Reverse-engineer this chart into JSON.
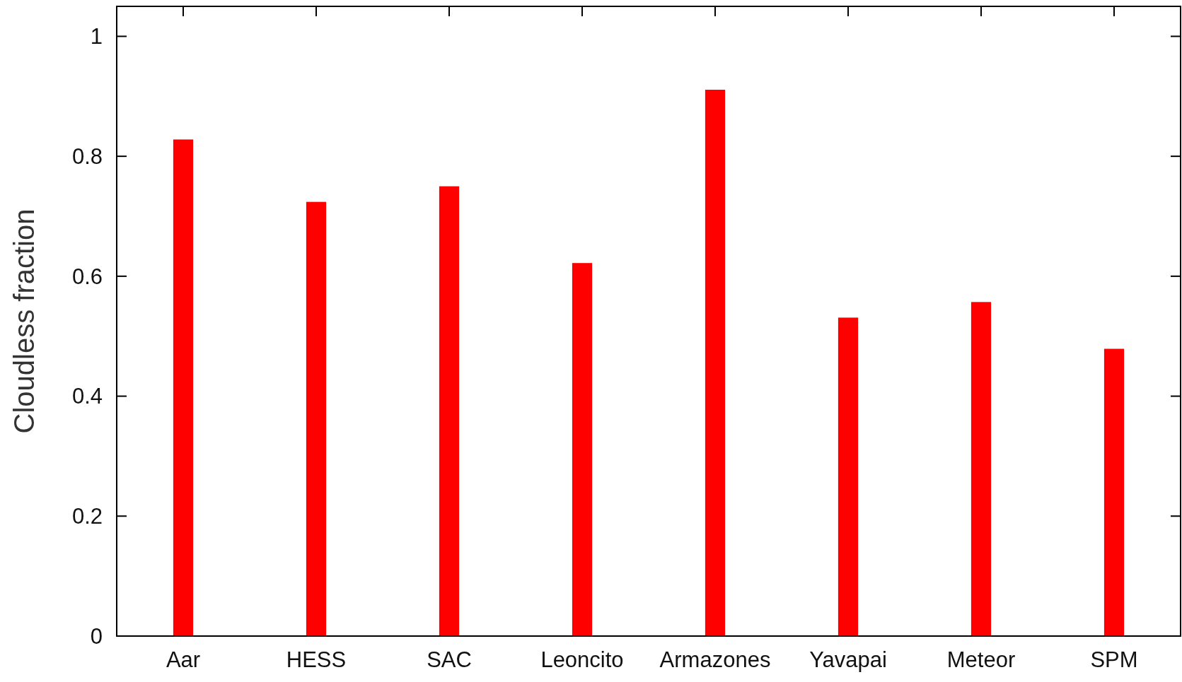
{
  "chart_data": {
    "type": "bar",
    "ylabel": "Cloudless fraction",
    "categories": [
      "Aar",
      "HESS",
      "SAC",
      "Leoncito",
      "Armazones",
      "Yavapai",
      "Meteor",
      "SPM"
    ],
    "values": [
      0.828,
      0.724,
      0.75,
      0.622,
      0.911,
      0.531,
      0.557,
      0.479
    ],
    "color": "#ff0000",
    "ylim": [
      0,
      1.05
    ],
    "yticks": [
      0,
      0.2,
      0.4,
      0.6,
      0.8,
      1
    ],
    "grid": false
  }
}
